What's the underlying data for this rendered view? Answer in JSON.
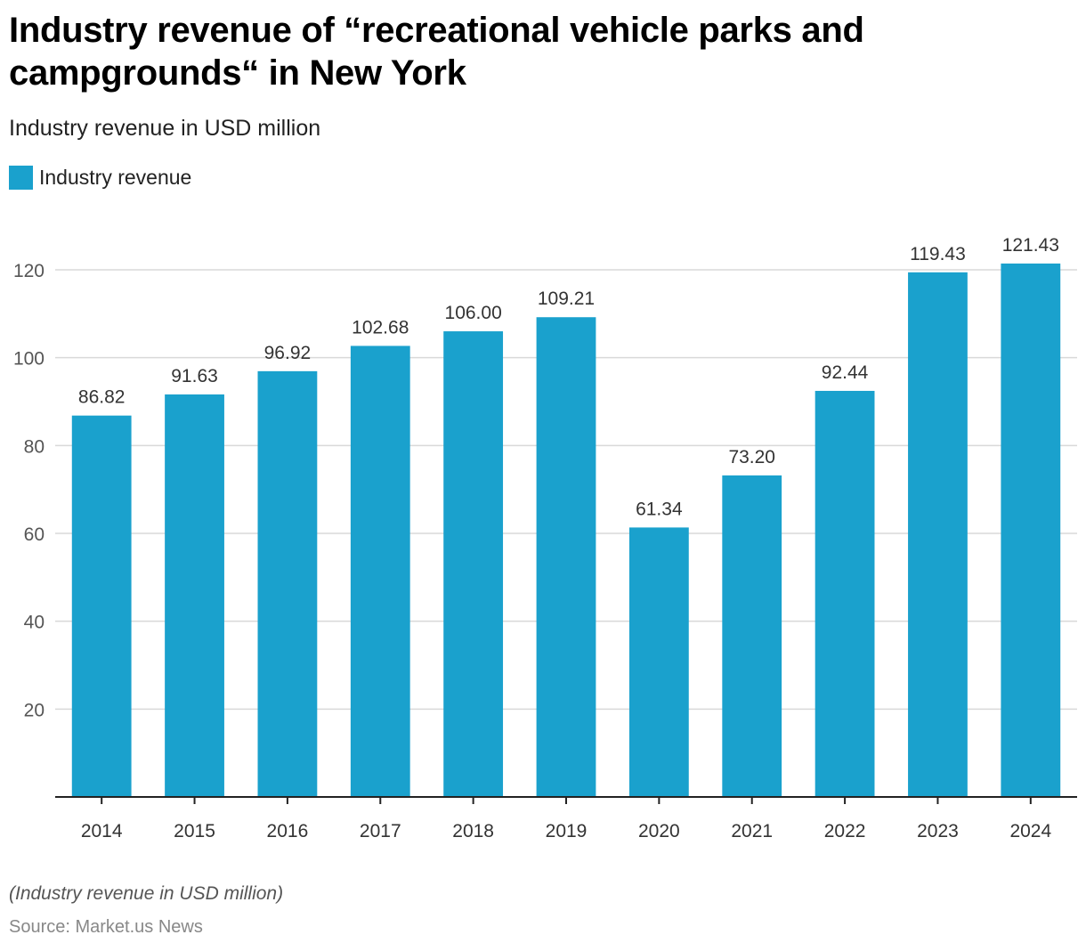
{
  "title": "Industry revenue of “recreational vehicle parks and campgrounds“ in New York",
  "subtitle": "Industry revenue in USD million",
  "legend": {
    "label": "Industry revenue",
    "color": "#1aa1cd"
  },
  "footnote": "(Industry revenue in USD million)",
  "source": "Source: Market.us News",
  "chart_data": {
    "type": "bar",
    "title": "Industry revenue of “recreational vehicle parks and campgrounds“ in New York",
    "subtitle": "Industry revenue in USD million",
    "xlabel": "",
    "ylabel": "",
    "categories": [
      "2014",
      "2015",
      "2016",
      "2017",
      "2018",
      "2019",
      "2020",
      "2021",
      "2022",
      "2023",
      "2024"
    ],
    "series": [
      {
        "name": "Industry revenue",
        "color": "#1aa1cd",
        "values": [
          86.82,
          91.63,
          96.92,
          102.68,
          106.0,
          109.21,
          61.34,
          73.2,
          92.44,
          119.43,
          121.43
        ],
        "labels": [
          "86.82",
          "91.63",
          "96.92",
          "102.68",
          "106.00",
          "109.21",
          "61.34",
          "73.20",
          "92.44",
          "119.43",
          "121.43"
        ]
      }
    ],
    "ylim": [
      0,
      120
    ],
    "yticks": [
      20,
      40,
      60,
      80,
      100,
      120
    ],
    "grid": true,
    "legend_position": "top-left"
  }
}
